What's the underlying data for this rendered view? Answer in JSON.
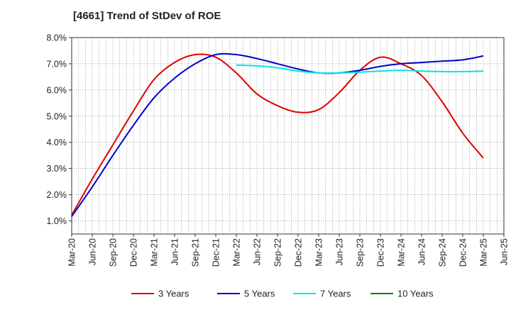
{
  "chart_data": {
    "type": "line",
    "title": "[4661]  Trend of StDev of ROE",
    "xlabel": "",
    "ylabel": "",
    "x_ticks": [
      "Mar-20",
      "Jun-20",
      "Sep-20",
      "Dec-20",
      "Mar-21",
      "Jun-21",
      "Sep-21",
      "Dec-21",
      "Mar-22",
      "Jun-22",
      "Sep-22",
      "Dec-22",
      "Mar-23",
      "Jun-23",
      "Sep-23",
      "Dec-23",
      "Mar-24",
      "Jun-24",
      "Sep-24",
      "Dec-24",
      "Mar-25",
      "Jun-25"
    ],
    "y_ticks": [
      "1.0%",
      "2.0%",
      "3.0%",
      "4.0%",
      "5.0%",
      "6.0%",
      "7.0%",
      "8.0%"
    ],
    "ylim": [
      0.5,
      8.0
    ],
    "grid": true,
    "legend_position": "bottom",
    "series": [
      {
        "name": "3 Years",
        "color": "#dd0000",
        "start_index": 0,
        "values": [
          1.22,
          2.6,
          3.9,
          5.2,
          6.4,
          7.05,
          7.35,
          7.25,
          6.65,
          5.85,
          5.4,
          5.15,
          5.25,
          5.9,
          6.75,
          7.25,
          7.0,
          6.55,
          5.55,
          4.35,
          3.4
        ]
      },
      {
        "name": "5 Years",
        "color": "#0000cc",
        "start_index": 0,
        "values": [
          1.17,
          2.3,
          3.5,
          4.65,
          5.7,
          6.45,
          7.0,
          7.35,
          7.35,
          7.2,
          7.0,
          6.8,
          6.65,
          6.65,
          6.75,
          6.9,
          7.0,
          7.05,
          7.1,
          7.15,
          7.3
        ]
      },
      {
        "name": "7 Years",
        "color": "#00e5ee",
        "start_index": 8,
        "values": [
          6.95,
          6.92,
          6.85,
          6.72,
          6.65,
          6.65,
          6.68,
          6.72,
          6.75,
          6.72,
          6.7,
          6.7,
          6.72
        ]
      },
      {
        "name": "10 Years",
        "color": "#008000",
        "start_index": 0,
        "values": []
      }
    ]
  }
}
